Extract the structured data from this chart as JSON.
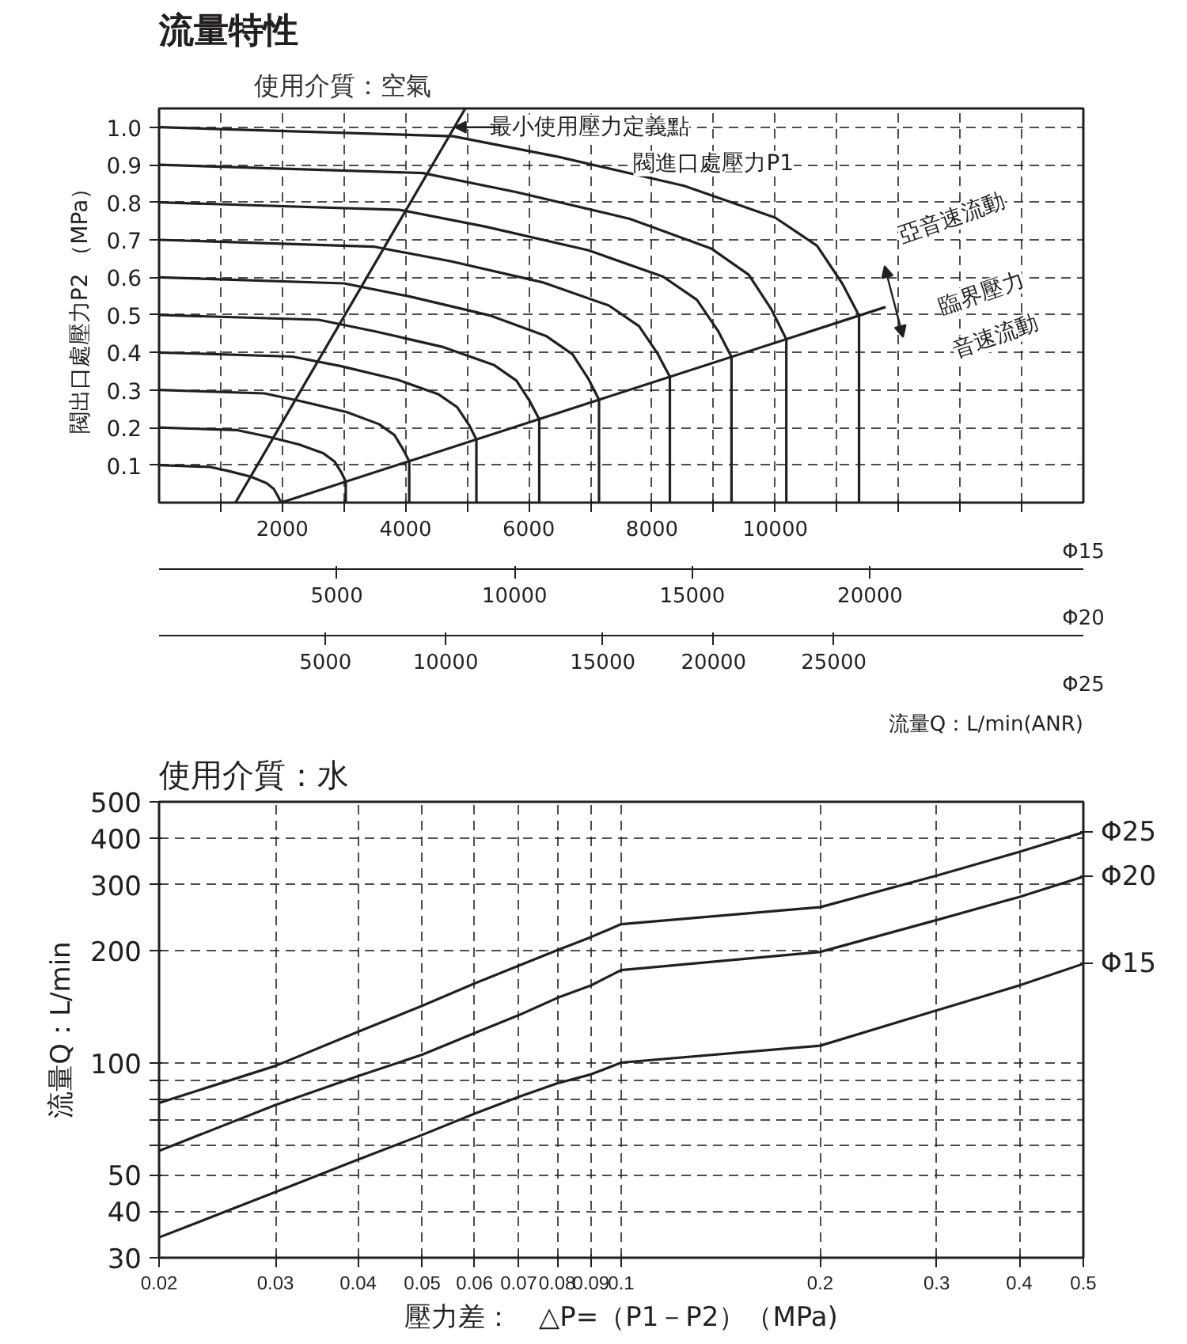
{
  "chart_data": [
    {
      "type": "line",
      "title": "流量特性",
      "subtitle": "使用介質：空氣",
      "ylabel": "閥出口處壓力P2 （MPa）",
      "xlabel": "Φ15",
      "x2label": "Φ20",
      "xlim": [
        0,
        15000
      ],
      "xticks": [
        {
          "value": 1000,
          "label": null
        },
        2000,
        {
          "value": 3000,
          "label": null
        },
        4000,
        {
          "value": 5000,
          "label": null
        },
        6000,
        {
          "value": 7000,
          "label": null
        },
        8000,
        {
          "value": 9000,
          "label": null
        },
        10000,
        {
          "value": 11000,
          "label": null
        },
        {
          "value": 12000,
          "label": null
        },
        {
          "value": 13000,
          "label": null
        },
        {
          "value": 14000,
          "label": null
        }
      ],
      "x2lim": [
        0,
        26000
      ],
      "x2ticks": [
        5000,
        10000,
        15000,
        20000
      ],
      "ylim": [
        0,
        1.05
      ],
      "yticks": [
        0.1,
        0.2,
        0.3,
        0.4,
        0.5,
        0.6,
        0.7,
        0.8,
        0.9,
        {
          "value": 1.0,
          "label": "1.0"
        }
      ],
      "grid": true,
      "annotations": [
        {
          "text": "最小使用壓力定義點",
          "x": 4800,
          "y": 1.0
        },
        "閥進口處壓力P1",
        "亞音速流動",
        "臨界壓力",
        "音速流動",
        "5000",
        "10000",
        "15000",
        "20000",
        "25000",
        "Φ25",
        "流量Q：L/min(ANR)"
      ],
      "series": [
        {
          "color": "#231f20",
          "x": [
            0,
            830,
            1130,
            1490,
            1740,
            1860,
            1930,
            1980
          ],
          "values": [
            0.1,
            0.095,
            0.084,
            0.069,
            0.052,
            0.037,
            0.017,
            0
          ]
        },
        {
          "color": "#231f20",
          "x": [
            0,
            1270,
            1730,
            2270,
            2670,
            2850,
            2960,
            3030,
            3030
          ],
          "values": [
            0.2,
            0.193,
            0.177,
            0.155,
            0.131,
            0.109,
            0.08,
            0.056,
            0
          ]
        },
        {
          "color": "#231f20",
          "x": [
            0,
            1710,
            2310,
            3050,
            3570,
            3820,
            3960,
            4060,
            4060
          ],
          "values": [
            0.3,
            0.291,
            0.27,
            0.241,
            0.209,
            0.18,
            0.142,
            0.11,
            0
          ]
        },
        {
          "color": "#231f20",
          "x": [
            0,
            2160,
            2940,
            3860,
            4530,
            4840,
            5030,
            5150,
            5150
          ],
          "values": [
            0.4,
            0.389,
            0.364,
            0.328,
            0.289,
            0.254,
            0.207,
            0.168,
            0
          ]
        },
        {
          "color": "#231f20",
          "x": [
            0,
            2590,
            3510,
            4620,
            5430,
            5800,
            6020,
            6170,
            6170
          ],
          "values": [
            0.5,
            0.487,
            0.456,
            0.414,
            0.367,
            0.325,
            0.269,
            0.222,
            0
          ]
        },
        {
          "color": "#231f20",
          "x": [
            0,
            3000,
            4070,
            5360,
            6280,
            6710,
            6970,
            7140,
            7140
          ],
          "values": [
            0.6,
            0.584,
            0.549,
            0.499,
            0.444,
            0.395,
            0.329,
            0.274,
            0
          ]
        },
        {
          "color": "#231f20",
          "x": [
            0,
            3480,
            4730,
            6220,
            7300,
            7790,
            8090,
            8290,
            8290
          ],
          "values": [
            0.7,
            0.682,
            0.643,
            0.587,
            0.525,
            0.47,
            0.397,
            0.335,
            0
          ]
        },
        {
          "color": "#231f20",
          "x": [
            0,
            3900,
            5300,
            6970,
            8180,
            8730,
            9070,
            9290,
            9290
          ],
          "values": [
            0.8,
            0.78,
            0.735,
            0.672,
            0.602,
            0.54,
            0.458,
            0.388,
            0
          ]
        },
        {
          "color": "#231f20",
          "x": [
            0,
            4280,
            5800,
            7640,
            8960,
            9570,
            9940,
            10180,
            10180
          ],
          "values": [
            0.9,
            0.878,
            0.827,
            0.756,
            0.677,
            0.607,
            0.514,
            0.435,
            0
          ]
        },
        {
          "color": "#231f20",
          "x": [
            0,
            4770,
            6480,
            8520,
            10000,
            10680,
            11090,
            11360,
            11360
          ],
          "values": [
            1.0,
            0.976,
            0.921,
            0.844,
            0.759,
            0.684,
            0.583,
            0.498,
            0
          ]
        },
        {
          "color": "#231f20",
          "x": [
            1240,
            4970
          ],
          "values": [
            0,
            1.05
          ]
        },
        {
          "color": "#231f20",
          "x": [
            1980,
            11790
          ],
          "values": [
            0,
            0.521
          ]
        }
      ]
    },
    {
      "type": "line",
      "title": "使用介質：水",
      "xlabel": "壓力差：　△P=（P1－P2）（MPa)",
      "ylabel": "流量Q：L/min",
      "log": "xy",
      "x": [
        0.02,
        0.03,
        0.04,
        0.05,
        0.06,
        0.07,
        0.08,
        0.09,
        0.1,
        0.2,
        0.3,
        0.4,
        0.5
      ],
      "xlim": [
        0.02,
        0.5
      ],
      "xticks": [
        0.02,
        0.03,
        0.04,
        0.05,
        0.06,
        0.07,
        0.08,
        0.09,
        0.1,
        0.2,
        0.3,
        0.4,
        0.5
      ],
      "ylim": [
        30,
        500
      ],
      "yticks": [
        30,
        40,
        50,
        {
          "value": 60,
          "label": null
        },
        {
          "value": 70,
          "label": null
        },
        {
          "value": 80,
          "label": null
        },
        {
          "value": 90,
          "label": null
        },
        100,
        200,
        300,
        400,
        500
      ],
      "grid": true,
      "legend": "right",
      "series": [
        {
          "name": "Φ25",
          "color": "#231f20",
          "values": [
            78,
            98,
            121,
            142,
            163,
            182,
            200,
            217,
            235,
            261,
            317,
            367,
            414
          ]
        },
        {
          "name": "Φ20",
          "color": "#231f20",
          "values": [
            58,
            77,
            92,
            105,
            120,
            134,
            149,
            161,
            177,
            198,
            241,
            278,
            315
          ]
        },
        {
          "name": "Φ15",
          "color": "#231f20",
          "values": [
            34,
            45,
            55,
            64,
            73,
            81,
            88,
            93,
            100,
            111,
            138,
            161,
            184
          ]
        }
      ]
    }
  ]
}
